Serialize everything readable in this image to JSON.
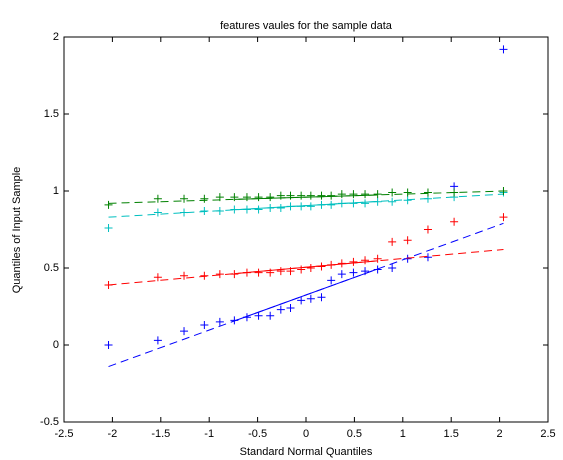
{
  "chart_data": {
    "type": "qqplot",
    "title": "features vaules for the sample data",
    "xlabel": "Standard Normal Quantiles",
    "ylabel": "Quantiles of Input Sample",
    "xlim": [
      -2.5,
      2.5
    ],
    "xticks": [
      -2.5,
      -2,
      -1.5,
      -1,
      -0.5,
      0,
      0.5,
      1,
      1.5,
      2,
      2.5
    ],
    "ylim": [
      -0.5,
      2
    ],
    "yticks": [
      -0.5,
      0,
      0.5,
      1,
      1.5,
      2
    ],
    "x": [
      -2.04,
      -1.53,
      -1.26,
      -1.05,
      -0.89,
      -0.74,
      -0.61,
      -0.49,
      -0.37,
      -0.26,
      -0.16,
      -0.05,
      0.05,
      0.16,
      0.26,
      0.37,
      0.49,
      0.61,
      0.74,
      0.89,
      1.05,
      1.26,
      1.53,
      2.04
    ],
    "series": [
      {
        "color": "#0000ff",
        "values": [
          0.0,
          0.03,
          0.09,
          0.13,
          0.15,
          0.16,
          0.18,
          0.19,
          0.19,
          0.23,
          0.24,
          0.29,
          0.3,
          0.31,
          0.42,
          0.46,
          0.47,
          0.48,
          0.49,
          0.5,
          0.56,
          0.57,
          1.03,
          1.92
        ],
        "fit_x": [
          -2.04,
          2.04
        ],
        "fit_values": [
          -0.14,
          0.79
        ]
      },
      {
        "color": "#ff0000",
        "values": [
          0.39,
          0.44,
          0.45,
          0.45,
          0.46,
          0.46,
          0.47,
          0.47,
          0.47,
          0.48,
          0.48,
          0.49,
          0.5,
          0.51,
          0.52,
          0.53,
          0.54,
          0.55,
          0.56,
          0.67,
          0.68,
          0.75,
          0.8,
          0.83
        ],
        "fit_x": [
          -2.04,
          2.04
        ],
        "fit_values": [
          0.39,
          0.62
        ]
      },
      {
        "color": "#00bfbf",
        "values": [
          0.76,
          0.86,
          0.86,
          0.87,
          0.87,
          0.88,
          0.88,
          0.88,
          0.89,
          0.89,
          0.9,
          0.9,
          0.9,
          0.91,
          0.91,
          0.92,
          0.92,
          0.92,
          0.93,
          0.93,
          0.94,
          0.95,
          0.96,
          0.99
        ],
        "fit_x": [
          -2.04,
          2.04
        ],
        "fit_values": [
          0.83,
          0.98
        ]
      },
      {
        "color": "#008000",
        "values": [
          0.91,
          0.95,
          0.95,
          0.95,
          0.96,
          0.96,
          0.96,
          0.96,
          0.96,
          0.97,
          0.97,
          0.97,
          0.97,
          0.97,
          0.97,
          0.98,
          0.98,
          0.98,
          0.98,
          0.99,
          0.99,
          0.99,
          0.99,
          1.0
        ],
        "fit_x": [
          -2.04,
          2.04
        ],
        "fit_values": [
          0.92,
          1.0
        ]
      }
    ]
  }
}
